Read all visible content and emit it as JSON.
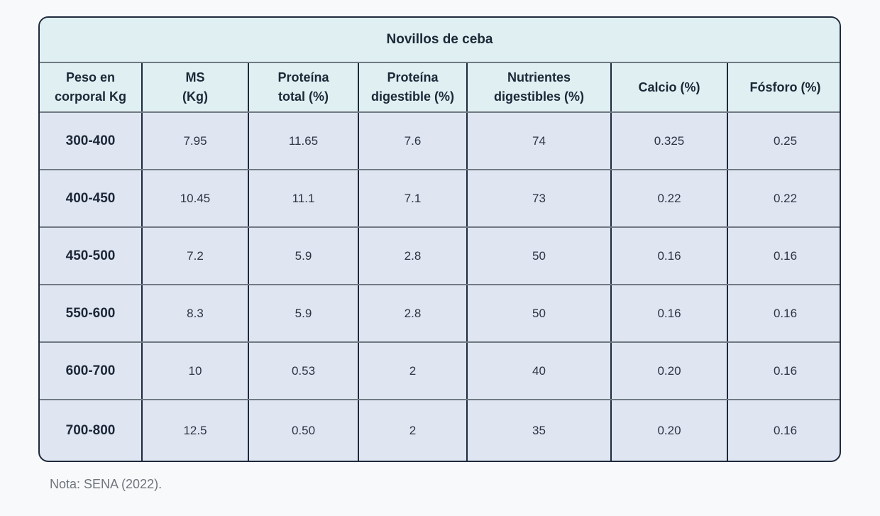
{
  "table": {
    "title": "Novillos de ceba",
    "headers": [
      "Peso en\ncorporal  Kg",
      "MS\n(Kg)",
      "Proteína\ntotal (%)",
      "Proteína\ndigestible (%)",
      "Nutrientes\ndigestibles (%)",
      "Calcio (%)",
      "Fósforo (%)"
    ],
    "rows": [
      [
        "300-400",
        "7.95",
        "11.65",
        "7.6",
        "74",
        "0.325",
        "0.25"
      ],
      [
        "400-450",
        "10.45",
        "11.1",
        "7.1",
        "73",
        "0.22",
        "0.22"
      ],
      [
        "450-500",
        "7.2",
        "5.9",
        "2.8",
        "50",
        "0.16",
        "0.16"
      ],
      [
        "550-600",
        "8.3",
        "5.9",
        "2.8",
        "50",
        "0.16",
        "0.16"
      ],
      [
        "600-700",
        "10",
        "0.53",
        "2",
        "40",
        "0.20",
        "0.16"
      ],
      [
        "700-800",
        "12.5",
        "0.50",
        "2",
        "35",
        "0.20",
        "0.16"
      ]
    ]
  },
  "note": "Nota: SENA (2022).",
  "colors": {
    "header_bg": "#e0eff1",
    "body_bg": "#e0e5f2",
    "border": "#1e2a3c",
    "text": "#1b2838"
  }
}
